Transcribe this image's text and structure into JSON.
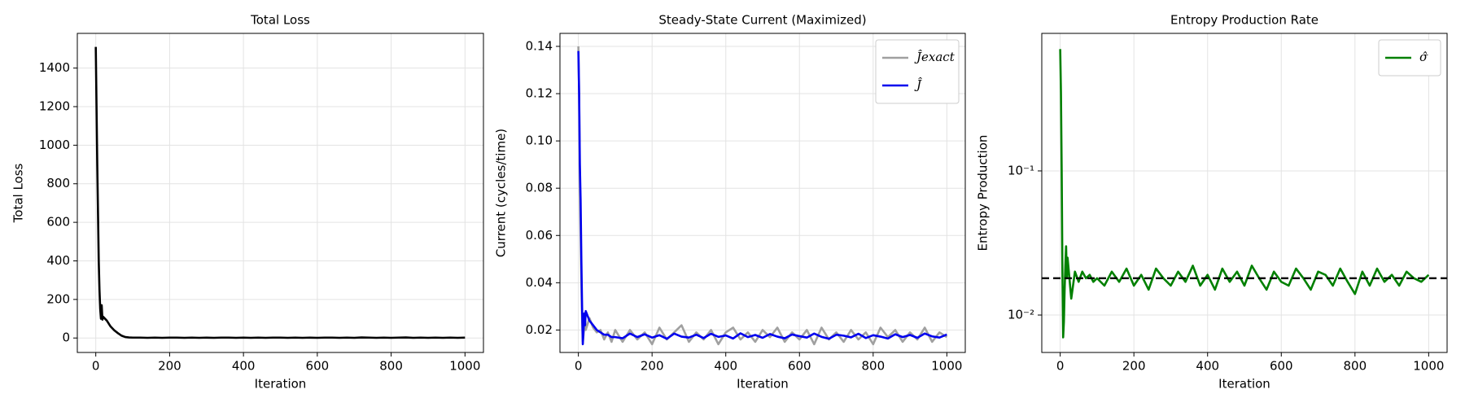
{
  "chart_data": [
    {
      "type": "line",
      "title": "Total Loss",
      "x_label": "Iteration",
      "y_label": "Total Loss",
      "grid": true,
      "x": [
        0,
        2,
        4,
        6,
        8,
        10,
        12,
        14,
        16,
        18,
        20,
        30,
        40,
        50,
        60,
        70,
        80,
        90,
        100,
        120,
        140,
        160,
        180,
        200,
        220,
        240,
        260,
        280,
        300,
        320,
        340,
        360,
        380,
        400,
        420,
        440,
        460,
        480,
        500,
        520,
        540,
        560,
        580,
        600,
        620,
        640,
        660,
        680,
        700,
        720,
        740,
        760,
        780,
        800,
        820,
        840,
        860,
        880,
        900,
        920,
        940,
        960,
        980,
        1000
      ],
      "series": [
        {
          "color": "#000000",
          "values": [
            1510,
            1200,
            900,
            650,
            400,
            250,
            150,
            100,
            170,
            95,
            110,
            90,
            60,
            40,
            25,
            12,
            5,
            3,
            2,
            2,
            1,
            2,
            1,
            2,
            2,
            1,
            2,
            1,
            2,
            1,
            2,
            2,
            1,
            2,
            1,
            2,
            1,
            2,
            2,
            1,
            2,
            1,
            2,
            1,
            2,
            2,
            1,
            2,
            1,
            3,
            2,
            1,
            2,
            1,
            2,
            3,
            1,
            2,
            1,
            2,
            1,
            2,
            1,
            2
          ]
        }
      ],
      "xlim": [
        -50,
        1050
      ],
      "xticks": [
        0,
        200,
        400,
        600,
        800,
        1000
      ],
      "ylim": [
        -75,
        1580
      ],
      "yticks": [
        0,
        200,
        400,
        600,
        800,
        1000,
        1200,
        1400
      ]
    },
    {
      "type": "line",
      "title": "Steady-State Current (Maximized)",
      "x_label": "Iteration",
      "y_label": "Current (cycles/time)",
      "grid": true,
      "legend": "upper right",
      "x": [
        0,
        2,
        4,
        6,
        8,
        10,
        12,
        14,
        16,
        18,
        20,
        30,
        40,
        50,
        60,
        70,
        80,
        90,
        100,
        120,
        140,
        160,
        180,
        200,
        220,
        240,
        260,
        280,
        300,
        320,
        340,
        360,
        380,
        400,
        420,
        440,
        460,
        480,
        500,
        520,
        540,
        560,
        580,
        600,
        620,
        640,
        660,
        680,
        700,
        720,
        740,
        760,
        780,
        800,
        820,
        840,
        860,
        880,
        900,
        920,
        940,
        960,
        980,
        1000
      ],
      "series": [
        {
          "name": "Ĵexact",
          "color": "#a0a0a0",
          "values": [
            0.14,
            0.12,
            0.08,
            0.06,
            0.04,
            0.025,
            0.015,
            0.018,
            0.022,
            0.026,
            0.02,
            0.025,
            0.021,
            0.019,
            0.02,
            0.016,
            0.019,
            0.015,
            0.02,
            0.015,
            0.02,
            0.016,
            0.019,
            0.014,
            0.021,
            0.016,
            0.019,
            0.022,
            0.015,
            0.019,
            0.016,
            0.02,
            0.014,
            0.019,
            0.021,
            0.016,
            0.019,
            0.015,
            0.02,
            0.017,
            0.021,
            0.015,
            0.019,
            0.016,
            0.02,
            0.014,
            0.021,
            0.016,
            0.019,
            0.015,
            0.02,
            0.016,
            0.019,
            0.014,
            0.021,
            0.017,
            0.02,
            0.015,
            0.019,
            0.016,
            0.021,
            0.015,
            0.019,
            0.017
          ]
        },
        {
          "name": "Ĵ",
          "color": "#0000ee",
          "values": [
            0.138,
            0.12,
            0.09,
            0.075,
            0.05,
            0.03,
            0.014,
            0.02,
            0.027,
            0.022,
            0.028,
            0.024,
            0.022,
            0.02,
            0.019,
            0.018,
            0.018,
            0.017,
            0.017,
            0.0165,
            0.0185,
            0.017,
            0.0182,
            0.0168,
            0.0178,
            0.0163,
            0.0185,
            0.0172,
            0.0168,
            0.018,
            0.0166,
            0.0184,
            0.0171,
            0.0177,
            0.0164,
            0.0186,
            0.017,
            0.0179,
            0.0167,
            0.0183,
            0.0172,
            0.0165,
            0.0181,
            0.0174,
            0.0168,
            0.0185,
            0.0171,
            0.0163,
            0.018,
            0.0176,
            0.0169,
            0.0184,
            0.0166,
            0.0178,
            0.0172,
            0.0164,
            0.0182,
            0.017,
            0.0179,
            0.0167,
            0.0185,
            0.0173,
            0.0168,
            0.0181
          ]
        }
      ],
      "xlim": [
        -50,
        1050
      ],
      "xticks": [
        0,
        200,
        400,
        600,
        800,
        1000
      ],
      "ylim": [
        0.0105,
        0.1455
      ],
      "yticks": [
        0.02,
        0.04,
        0.06,
        0.08,
        {
          "value": 0.1,
          "label": "0.10"
        },
        0.12,
        0.14
      ]
    },
    {
      "type": "line",
      "title": "Entropy Production Rate",
      "x_label": "Iteration",
      "y_label": "Entropy Production",
      "grid": true,
      "legend": "upper right",
      "log_y": true,
      "hline": 0.018,
      "hline_color": "#000000",
      "x": [
        0,
        2,
        4,
        6,
        8,
        10,
        12,
        14,
        16,
        18,
        20,
        30,
        40,
        50,
        60,
        70,
        80,
        90,
        100,
        120,
        140,
        160,
        180,
        200,
        220,
        240,
        260,
        280,
        300,
        320,
        340,
        360,
        380,
        400,
        420,
        440,
        460,
        480,
        500,
        520,
        540,
        560,
        580,
        600,
        620,
        640,
        660,
        680,
        700,
        720,
        740,
        760,
        780,
        800,
        820,
        840,
        860,
        880,
        900,
        920,
        940,
        960,
        980,
        1000
      ],
      "series": [
        {
          "name": "σ̂",
          "color": "#008000",
          "values": [
            0.7,
            0.35,
            0.1,
            0.02,
            0.007,
            0.009,
            0.015,
            0.022,
            0.03,
            0.018,
            0.025,
            0.013,
            0.02,
            0.017,
            0.02,
            0.018,
            0.019,
            0.017,
            0.018,
            0.016,
            0.02,
            0.017,
            0.021,
            0.016,
            0.019,
            0.015,
            0.021,
            0.018,
            0.016,
            0.02,
            0.017,
            0.022,
            0.016,
            0.019,
            0.015,
            0.021,
            0.017,
            0.02,
            0.016,
            0.022,
            0.018,
            0.015,
            0.02,
            0.017,
            0.016,
            0.021,
            0.018,
            0.015,
            0.02,
            0.019,
            0.016,
            0.021,
            0.017,
            0.014,
            0.02,
            0.016,
            0.021,
            0.017,
            0.019,
            0.016,
            0.02,
            0.018,
            0.017,
            0.019
          ]
        }
      ],
      "xlim": [
        -50,
        1050
      ],
      "xticks": [
        0,
        200,
        400,
        600,
        800,
        1000
      ],
      "ylim": [
        0.0055,
        0.9
      ],
      "yticks": [
        {
          "value": 0.01,
          "label": "10⁻²"
        },
        {
          "value": 0.1,
          "label": "10⁻¹"
        }
      ]
    }
  ]
}
